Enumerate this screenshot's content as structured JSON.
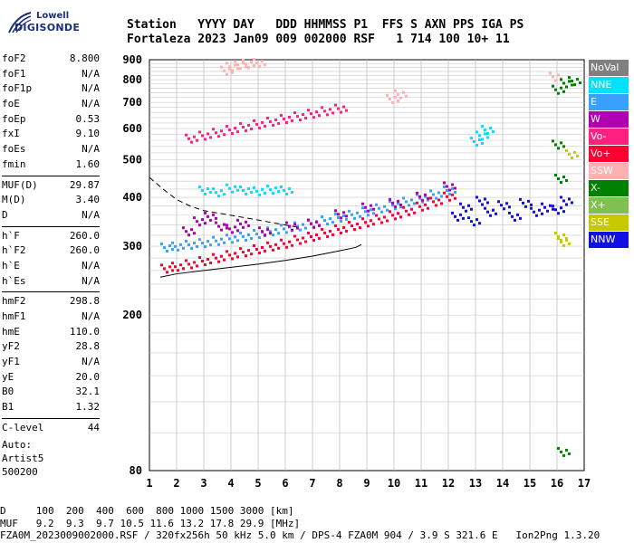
{
  "logo": {
    "line1": "Lowell",
    "line2": "DIGISONDE"
  },
  "header": {
    "row1": "Station   YYYY DAY   DDD HHMMSS P1  FFS S AXN PPS IGA PS",
    "row2": "Fortaleza 2023 Jan09 009 002000 RSF   1 714 100 10+ 11"
  },
  "params": [
    {
      "k": "foF2",
      "v": "8.800"
    },
    {
      "k": "foF1",
      "v": "N/A"
    },
    {
      "k": "foF1p",
      "v": "N/A"
    },
    {
      "k": "foE",
      "v": "N/A"
    },
    {
      "k": "foEp",
      "v": "0.53"
    },
    {
      "k": "fxI",
      "v": "9.10"
    },
    {
      "k": "foEs",
      "v": "N/A"
    },
    {
      "k": "fmin",
      "v": "1.60"
    },
    {
      "sep": true
    },
    {
      "k": "MUF(D)",
      "v": "29.87"
    },
    {
      "k": "M(D)",
      "v": "3.40"
    },
    {
      "k": "D",
      "v": "N/A"
    },
    {
      "sep": true
    },
    {
      "k": "h`F",
      "v": "260.0"
    },
    {
      "k": "h`F2",
      "v": "260.0"
    },
    {
      "k": "h`E",
      "v": "N/A"
    },
    {
      "k": "h`Es",
      "v": "N/A"
    },
    {
      "sep": true
    },
    {
      "k": "hmF2",
      "v": "298.8"
    },
    {
      "k": "hmF1",
      "v": "N/A"
    },
    {
      "k": "hmE",
      "v": "110.0"
    },
    {
      "k": "yF2",
      "v": "28.8"
    },
    {
      "k": "yF1",
      "v": "N/A"
    },
    {
      "k": "yE",
      "v": "20.0"
    },
    {
      "k": "B0",
      "v": "32.1"
    },
    {
      "k": "B1",
      "v": "1.32"
    },
    {
      "sep": true
    },
    {
      "k": "C-level",
      "v": "44"
    }
  ],
  "auto": {
    "line1": "Auto:",
    "line2": "Artist5",
    "line3": "500200"
  },
  "legend": [
    {
      "label": "NoVal",
      "color": "#808080"
    },
    {
      "label": "NNE",
      "color": "#00e0ff"
    },
    {
      "label": "E",
      "color": "#3aa0ff"
    },
    {
      "label": "W",
      "color": "#b000b0"
    },
    {
      "label": "Vo-",
      "color": "#ff2080"
    },
    {
      "label": "Vo+",
      "color": "#ff0030"
    },
    {
      "label": "SSW",
      "color": "#ffb0b0"
    },
    {
      "label": "X-",
      "color": "#008000"
    },
    {
      "label": "X+",
      "color": "#80c050"
    },
    {
      "label": "SSE",
      "color": "#c8c800"
    },
    {
      "label": "NNW",
      "color": "#1010e0"
    }
  ],
  "footer": {
    "line1": "D     100  200  400  600  800 1000 1500 3000 [km]",
    "line2": "MUF   9.2  9.3  9.7 10.5 11.6 13.2 17.8 29.9 [MHz]",
    "line3": "FZA0M_2023009002000.RSF / 320fx256h 50 kHz 5.0 km / DPS-4 FZA0M 904 / 3.9 S 321.6 E   Ion2Png 1.3.20"
  },
  "chart_data": {
    "type": "scatter",
    "xlim": [
      1,
      17
    ],
    "ylim": [
      80,
      900
    ],
    "x_ticks": [
      1,
      2,
      3,
      4,
      5,
      6,
      7,
      8,
      9,
      10,
      11,
      12,
      13,
      14,
      15,
      16,
      17
    ],
    "y_ticks": [
      80,
      200,
      300,
      400,
      500,
      600,
      700,
      800,
      900
    ],
    "y_scale": "log",
    "grid": true,
    "series": [
      {
        "name": "Vo+",
        "color": "#ff0030",
        "points": [
          [
            1.6,
            265
          ],
          [
            2.0,
            268
          ],
          [
            2.5,
            272
          ],
          [
            3.0,
            277
          ],
          [
            3.5,
            282
          ],
          [
            4.0,
            287
          ],
          [
            4.5,
            292
          ],
          [
            5.0,
            297
          ],
          [
            5.5,
            302
          ],
          [
            6.0,
            307
          ],
          [
            6.5,
            314
          ],
          [
            7.0,
            320
          ],
          [
            7.5,
            327
          ],
          [
            8.0,
            334
          ],
          [
            8.5,
            341
          ],
          [
            9.0,
            348
          ],
          [
            9.5,
            355
          ],
          [
            10.0,
            363
          ],
          [
            10.5,
            372
          ],
          [
            11.0,
            382
          ],
          [
            11.5,
            393
          ],
          [
            12.0,
            405
          ]
        ]
      },
      {
        "name": "E",
        "color": "#3aa0ff",
        "points": [
          [
            1.6,
            300
          ],
          [
            2.0,
            302
          ],
          [
            2.5,
            305
          ],
          [
            3.0,
            308
          ],
          [
            3.5,
            312
          ],
          [
            4.0,
            316
          ],
          [
            4.5,
            320
          ],
          [
            5.0,
            325
          ],
          [
            5.5,
            330
          ],
          [
            6.0,
            335
          ],
          [
            6.5,
            340
          ],
          [
            7.0,
            346
          ],
          [
            7.5,
            352
          ],
          [
            8.0,
            358
          ],
          [
            8.5,
            364
          ],
          [
            9.0,
            371
          ],
          [
            9.5,
            378
          ],
          [
            10.0,
            385
          ],
          [
            10.5,
            393
          ],
          [
            11.0,
            401
          ],
          [
            11.5,
            410
          ],
          [
            12.0,
            420
          ]
        ]
      },
      {
        "name": "W",
        "color": "#b000b0",
        "points": [
          [
            2.4,
            330
          ],
          [
            2.8,
            350
          ],
          [
            3.2,
            360
          ],
          [
            3.6,
            340
          ],
          [
            4.0,
            335
          ],
          [
            4.4,
            345
          ],
          [
            5.2,
            330
          ],
          [
            6.2,
            340
          ],
          [
            7.0,
            345
          ],
          [
            8.0,
            365
          ],
          [
            9.0,
            380
          ],
          [
            10.0,
            390
          ],
          [
            11.0,
            405
          ],
          [
            12.0,
            430
          ]
        ]
      },
      {
        "name": "NNW",
        "color": "#1010e0",
        "points": [
          [
            12.3,
            360
          ],
          [
            12.6,
            380
          ],
          [
            12.9,
            350
          ],
          [
            13.2,
            395
          ],
          [
            13.5,
            370
          ],
          [
            14.0,
            385
          ],
          [
            14.4,
            360
          ],
          [
            14.8,
            390
          ],
          [
            15.2,
            370
          ],
          [
            15.6,
            380
          ],
          [
            16.0,
            375
          ],
          [
            16.3,
            395
          ]
        ]
      },
      {
        "name": "NNE",
        "color": "#00e0ff",
        "points": [
          [
            3.0,
            420
          ],
          [
            3.5,
            415
          ],
          [
            4.0,
            425
          ],
          [
            4.5,
            420
          ],
          [
            5.0,
            418
          ],
          [
            5.5,
            422
          ],
          [
            6.0,
            420
          ],
          [
            13.0,
            560
          ],
          [
            13.2,
            580
          ],
          [
            13.4,
            600
          ]
        ]
      },
      {
        "name": "Vo-",
        "color": "#ff2080",
        "points": [
          [
            2.5,
            570
          ],
          [
            3.0,
            580
          ],
          [
            3.5,
            590
          ],
          [
            4.0,
            600
          ],
          [
            4.5,
            610
          ],
          [
            5.0,
            620
          ],
          [
            5.5,
            630
          ],
          [
            6.0,
            640
          ],
          [
            6.5,
            650
          ],
          [
            7.0,
            660
          ],
          [
            7.5,
            670
          ],
          [
            8.0,
            680
          ]
        ]
      },
      {
        "name": "SSW",
        "color": "#ffb0b0",
        "points": [
          [
            3.8,
            850
          ],
          [
            4.0,
            870
          ],
          [
            4.3,
            880
          ],
          [
            4.6,
            885
          ],
          [
            5.0,
            890
          ],
          [
            9.9,
            720
          ],
          [
            10.2,
            740
          ],
          [
            15.9,
            820
          ]
        ]
      },
      {
        "name": "X-",
        "color": "#008000",
        "points": [
          [
            16.0,
            550
          ],
          [
            16.0,
            760
          ],
          [
            16.3,
            790
          ],
          [
            16.6,
            800
          ],
          [
            16.1,
            450
          ],
          [
            16.2,
            90
          ]
        ]
      },
      {
        "name": "SSE",
        "color": "#c8c800",
        "points": [
          [
            16.1,
            320
          ],
          [
            16.2,
            310
          ],
          [
            16.5,
            520
          ]
        ]
      }
    ],
    "profile_curve": [
      [
        1.4,
        250
      ],
      [
        2.0,
        255
      ],
      [
        3.0,
        260
      ],
      [
        4.0,
        265
      ],
      [
        5.0,
        270
      ],
      [
        6.0,
        276
      ],
      [
        7.0,
        283
      ],
      [
        8.0,
        292
      ],
      [
        8.6,
        298
      ],
      [
        8.8,
        303
      ]
    ],
    "dashed_curve": [
      [
        1.0,
        450
      ],
      [
        1.5,
        420
      ],
      [
        2.0,
        395
      ],
      [
        2.5,
        380
      ],
      [
        3.0,
        370
      ],
      [
        3.5,
        365
      ],
      [
        4.0,
        360
      ],
      [
        4.5,
        355
      ],
      [
        5.0,
        350
      ],
      [
        5.5,
        345
      ],
      [
        6.0,
        340
      ],
      [
        6.5,
        335
      ]
    ]
  }
}
